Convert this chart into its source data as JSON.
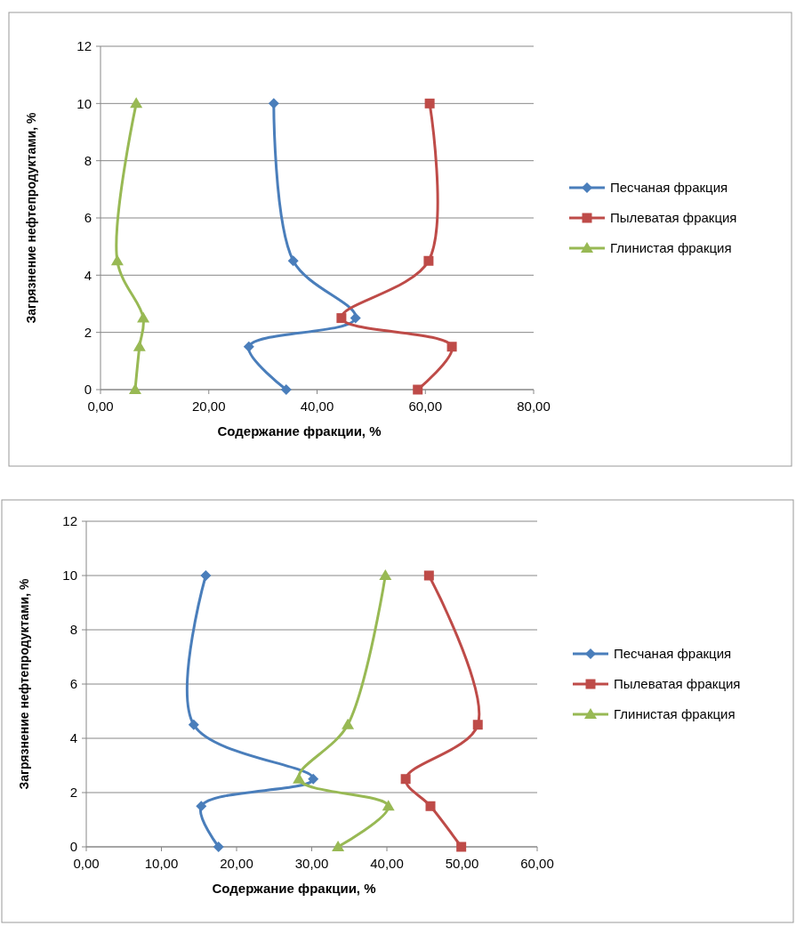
{
  "chart_data": [
    {
      "type": "line",
      "xlabel": "Содержание фракции, %",
      "ylabel": "Загрязнение нефтепродуктами, %",
      "xlim": [
        0,
        80
      ],
      "xticks": [
        {
          "value": 0,
          "label": "0,00"
        },
        {
          "value": 20,
          "label": "20,00"
        },
        {
          "value": 40,
          "label": "40,00"
        },
        {
          "value": 60,
          "label": "60,00"
        },
        {
          "value": 80,
          "label": "80,00"
        }
      ],
      "ylim": [
        0,
        12
      ],
      "yticks": [
        0,
        2,
        4,
        6,
        8,
        10,
        12
      ],
      "grid": "y",
      "legend": "right",
      "series": [
        {
          "name": "Песчаная фракция",
          "color": "#4a7ebb",
          "marker": "diamond",
          "x": [
            34.3,
            27.4,
            47.1,
            35.6,
            32.0
          ],
          "values": [
            0,
            1.5,
            2.5,
            4.5,
            10
          ]
        },
        {
          "name": "Пылеватая фракция",
          "color": "#be4b48",
          "marker": "square",
          "x": [
            58.6,
            64.9,
            44.5,
            60.6,
            60.8
          ],
          "values": [
            0,
            1.5,
            2.5,
            4.5,
            10
          ]
        },
        {
          "name": "Глинистая фракция",
          "color": "#98b954",
          "marker": "triangle",
          "x": [
            6.4,
            7.2,
            7.9,
            3.1,
            6.6
          ],
          "values": [
            0,
            1.5,
            2.5,
            4.5,
            10
          ]
        }
      ]
    },
    {
      "type": "line",
      "xlabel": "Содержание фракции, %",
      "ylabel": "Загрязнение нефтепродуктами, %",
      "xlim": [
        0,
        60
      ],
      "xticks": [
        {
          "value": 0,
          "label": "0,00"
        },
        {
          "value": 10,
          "label": "10,00"
        },
        {
          "value": 20,
          "label": "20,00"
        },
        {
          "value": 30,
          "label": "30,00"
        },
        {
          "value": 40,
          "label": "40,00"
        },
        {
          "value": 50,
          "label": "50,00"
        },
        {
          "value": 60,
          "label": "60,00"
        }
      ],
      "ylim": [
        0,
        12
      ],
      "yticks": [
        0,
        2,
        4,
        6,
        8,
        10,
        12
      ],
      "grid": "y",
      "legend": "right",
      "series": [
        {
          "name": "Песчаная фракция",
          "color": "#4a7ebb",
          "marker": "diamond",
          "x": [
            17.6,
            15.3,
            30.2,
            14.3,
            15.9
          ],
          "values": [
            0,
            1.5,
            2.5,
            4.5,
            10
          ]
        },
        {
          "name": "Пылеватая фракция",
          "color": "#be4b48",
          "marker": "square",
          "x": [
            49.9,
            45.8,
            42.5,
            52.1,
            45.6
          ],
          "values": [
            0,
            1.5,
            2.5,
            4.5,
            10
          ]
        },
        {
          "name": "Глинистая фракция",
          "color": "#98b954",
          "marker": "triangle",
          "x": [
            33.5,
            40.2,
            28.3,
            34.8,
            39.8
          ],
          "values": [
            0,
            1.5,
            2.5,
            4.5,
            10
          ]
        }
      ]
    }
  ]
}
